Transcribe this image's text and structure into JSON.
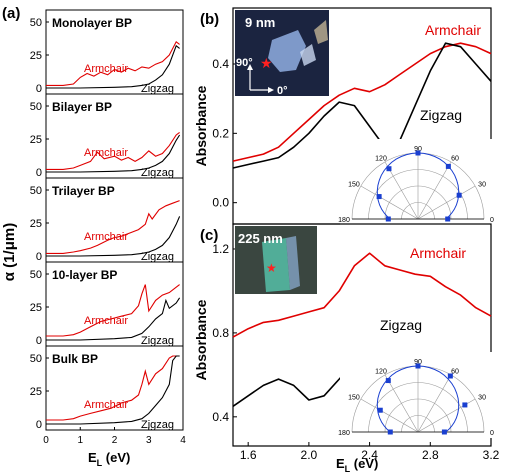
{
  "chart_data": [
    {
      "id": "a",
      "type": "line",
      "panel_label": "(a)",
      "xlabel_main": "E",
      "xlabel_sub": "L",
      "xlabel_unit": " (eV)",
      "ylabel": "α (1/μm)",
      "xlim": [
        0,
        4
      ],
      "x_ticks": [
        "0",
        "1",
        "2",
        "3",
        "4"
      ],
      "ylim": [
        0,
        50
      ],
      "y_ticks": [
        "0",
        "25",
        "50"
      ],
      "subpanels": [
        {
          "title": "Monolayer BP",
          "annotations": {
            "armchair": "Armchair",
            "zigzag": "Zigzag"
          },
          "series": [
            {
              "name": "Armchair",
              "color": "#e00000",
              "x": [
                0,
                0.5,
                0.8,
                1.0,
                1.2,
                1.4,
                1.6,
                1.8,
                2.0,
                2.2,
                2.4,
                2.6,
                2.8,
                3.0,
                3.2,
                3.4,
                3.6,
                3.8,
                3.9
              ],
              "y": [
                2,
                2,
                3,
                8,
                11,
                9,
                12,
                10,
                14,
                12,
                15,
                13,
                16,
                15,
                18,
                20,
                25,
                35,
                33
              ]
            },
            {
              "name": "Zigzag",
              "color": "#000000",
              "x": [
                0,
                1.0,
                2.0,
                2.5,
                2.8,
                3.0,
                3.2,
                3.4,
                3.6,
                3.8,
                3.9
              ],
              "y": [
                0,
                0,
                0.5,
                1,
                2,
                3,
                6,
                10,
                18,
                32,
                30
              ]
            }
          ]
        },
        {
          "title": "Bilayer BP",
          "annotations": {
            "armchair": "Armchair",
            "zigzag": "Zigzag"
          },
          "series": [
            {
              "name": "Armchair",
              "color": "#e00000",
              "x": [
                0,
                0.5,
                0.8,
                1.0,
                1.3,
                1.5,
                1.7,
                2.0,
                2.2,
                2.4,
                2.6,
                2.8,
                3.0,
                3.2,
                3.4,
                3.6,
                3.8,
                3.9
              ],
              "y": [
                2,
                2,
                3,
                5,
                8,
                15,
                10,
                12,
                9,
                11,
                8,
                11,
                16,
                12,
                14,
                20,
                28,
                30
              ]
            },
            {
              "name": "Zigzag",
              "color": "#000000",
              "x": [
                0,
                1.0,
                2.0,
                2.5,
                2.8,
                3.0,
                3.2,
                3.4,
                3.6,
                3.8,
                3.9
              ],
              "y": [
                0,
                0,
                0.5,
                1,
                2,
                3,
                5,
                8,
                14,
                24,
                28
              ]
            }
          ]
        },
        {
          "title": "Trilayer BP",
          "annotations": {
            "armchair": "Armchair",
            "zigzag": "Zigzag"
          },
          "series": [
            {
              "name": "Armchair",
              "color": "#e00000",
              "x": [
                0,
                0.5,
                0.8,
                1.0,
                1.3,
                1.5,
                1.8,
                2.0,
                2.2,
                2.4,
                2.7,
                2.9,
                3.0,
                3.1,
                3.3,
                3.5,
                3.7,
                3.9
              ],
              "y": [
                2,
                2,
                3,
                4,
                6,
                8,
                12,
                14,
                15,
                17,
                20,
                24,
                32,
                28,
                35,
                38,
                40,
                42
              ]
            },
            {
              "name": "Zigzag",
              "color": "#000000",
              "x": [
                0,
                1.0,
                2.0,
                2.5,
                2.8,
                3.0,
                3.2,
                3.4,
                3.6,
                3.8,
                3.9
              ],
              "y": [
                0,
                0,
                0.5,
                1,
                2,
                3,
                5,
                8,
                14,
                24,
                30
              ]
            }
          ]
        },
        {
          "title": "10-layer BP",
          "annotations": {
            "armchair": "Armchair",
            "zigzag": "Zigzag"
          },
          "series": [
            {
              "name": "Armchair",
              "color": "#e00000",
              "x": [
                0,
                0.5,
                0.8,
                1.0,
                1.3,
                1.6,
                1.9,
                2.2,
                2.5,
                2.7,
                2.8,
                2.9,
                3.0,
                3.2,
                3.4,
                3.6,
                3.8,
                3.9
              ],
              "y": [
                3,
                3,
                4,
                6,
                10,
                14,
                16,
                18,
                20,
                26,
                35,
                42,
                22,
                30,
                34,
                36,
                40,
                42
              ]
            },
            {
              "name": "Zigzag",
              "color": "#000000",
              "x": [
                0,
                1.0,
                2.0,
                2.5,
                2.8,
                3.0,
                3.2,
                3.4,
                3.5,
                3.6,
                3.8,
                3.9
              ],
              "y": [
                0,
                0,
                1,
                2,
                5,
                10,
                16,
                20,
                30,
                24,
                28,
                32
              ]
            }
          ]
        },
        {
          "title": "Bulk BP",
          "annotations": {
            "armchair": "Armchair",
            "zigzag": "Zigzag"
          },
          "series": [
            {
              "name": "Armchair",
              "color": "#e00000",
              "x": [
                0,
                0.5,
                0.8,
                1.0,
                1.3,
                1.6,
                1.9,
                2.2,
                2.5,
                2.7,
                2.8,
                2.9,
                3.0,
                3.2,
                3.4,
                3.6,
                3.7,
                3.9
              ],
              "y": [
                3,
                3,
                4,
                6,
                8,
                10,
                12,
                16,
                18,
                22,
                30,
                40,
                30,
                38,
                42,
                50,
                55,
                55
              ]
            },
            {
              "name": "Zigzag",
              "color": "#000000",
              "x": [
                0,
                1.0,
                2.0,
                2.5,
                2.8,
                3.0,
                3.2,
                3.4,
                3.6,
                3.7,
                3.8,
                3.9
              ],
              "y": [
                0,
                0,
                1,
                2,
                4,
                8,
                14,
                20,
                30,
                48,
                55,
                56
              ]
            }
          ]
        }
      ]
    },
    {
      "id": "b",
      "type": "line",
      "panel_label": "(b)",
      "inset_label": "9 nm",
      "inset_angle_90": "90°",
      "inset_angle_0": "0°",
      "ylabel": "Absorbance",
      "xlim": [
        1.5,
        3.2
      ],
      "ylim": [
        -0.05,
        0.55
      ],
      "y_ticks": [
        "0.0",
        "0.2",
        "0.4"
      ],
      "annotations": {
        "armchair": "Armchair",
        "zigzag": "Zigzag"
      },
      "series": [
        {
          "name": "Armchair",
          "color": "#e00000",
          "x": [
            1.5,
            1.6,
            1.7,
            1.8,
            1.9,
            2.0,
            2.1,
            2.2,
            2.3,
            2.4,
            2.5,
            2.6,
            2.7,
            2.8,
            2.9,
            3.0,
            3.1,
            3.2
          ],
          "y": [
            0.12,
            0.13,
            0.14,
            0.16,
            0.2,
            0.24,
            0.28,
            0.31,
            0.33,
            0.32,
            0.34,
            0.37,
            0.4,
            0.43,
            0.45,
            0.46,
            0.45,
            0.43
          ]
        },
        {
          "name": "Zigzag",
          "color": "#000000",
          "x": [
            1.5,
            1.6,
            1.7,
            1.8,
            1.9,
            2.0,
            2.1,
            2.2,
            2.3,
            2.4,
            2.5,
            2.6,
            2.7,
            2.8,
            2.9,
            3.0,
            3.1,
            3.2
          ],
          "y": [
            0.1,
            0.11,
            0.12,
            0.13,
            0.16,
            0.2,
            0.25,
            0.29,
            0.28,
            0.22,
            0.16,
            0.18,
            0.28,
            0.38,
            0.46,
            0.45,
            0.4,
            0.35
          ]
        }
      ],
      "polar": {
        "angle_labels": [
          "180",
          "150",
          "120",
          "90",
          "60",
          "30",
          "0"
        ],
        "points_deg": [
          0,
          30,
          60,
          90,
          120,
          150,
          180
        ],
        "points_r": [
          0.45,
          0.72,
          0.92,
          1.0,
          0.88,
          0.68,
          0.45
        ]
      }
    },
    {
      "id": "c",
      "type": "line",
      "panel_label": "(c)",
      "inset_label": "225 nm",
      "ylabel": "Absorbance",
      "xlabel_main": "E",
      "xlabel_sub": "L",
      "xlabel_unit": " (eV)",
      "xlim": [
        1.5,
        3.2
      ],
      "x_ticks": [
        "1.6",
        "2.0",
        "2.4",
        "2.8",
        "3.2"
      ],
      "ylim": [
        0.28,
        1.3
      ],
      "y_ticks": [
        "0.4",
        "0.8",
        "1.2"
      ],
      "annotations": {
        "armchair": "Armchair",
        "zigzag": "Zigzag"
      },
      "series": [
        {
          "name": "Armchair",
          "color": "#e00000",
          "x": [
            1.5,
            1.6,
            1.7,
            1.8,
            1.9,
            2.0,
            2.1,
            2.2,
            2.3,
            2.4,
            2.5,
            2.6,
            2.7,
            2.8,
            2.9,
            3.0,
            3.1,
            3.2
          ],
          "y": [
            0.78,
            0.82,
            0.85,
            0.86,
            0.88,
            0.9,
            0.92,
            1.0,
            1.12,
            1.18,
            1.12,
            1.1,
            1.08,
            1.07,
            1.02,
            0.98,
            0.92,
            0.88
          ]
        },
        {
          "name": "Zigzag",
          "color": "#000000",
          "x": [
            1.5,
            1.6,
            1.7,
            1.8,
            1.9,
            2.0,
            2.1,
            2.2,
            2.3,
            2.4,
            2.5,
            2.6,
            2.7,
            2.8,
            2.9,
            3.0,
            3.1,
            3.2
          ],
          "y": [
            0.45,
            0.5,
            0.55,
            0.58,
            0.55,
            0.48,
            0.5,
            0.58,
            0.66,
            0.7,
            0.68,
            0.68,
            0.67,
            0.66,
            0.68,
            0.64,
            0.6,
            0.56
          ]
        }
      ],
      "polar": {
        "angle_labels": [
          "180",
          "150",
          "120",
          "90",
          "60",
          "30",
          "0"
        ],
        "points_deg": [
          0,
          30,
          60,
          90,
          120,
          150,
          180
        ],
        "points_r": [
          0.4,
          0.82,
          0.98,
          1.0,
          0.9,
          0.66,
          0.42
        ]
      }
    }
  ]
}
